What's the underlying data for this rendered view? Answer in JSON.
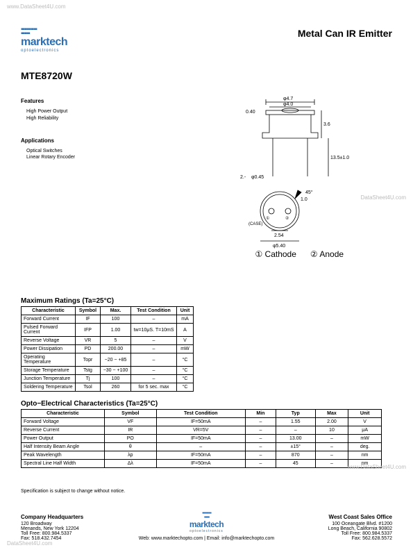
{
  "watermarks": {
    "tl": "www.DataSheet4U.com",
    "bl": "DataSheet4U.com",
    "r1": "DataSheet4U.com",
    "r2": "www.DataSheet4U.com"
  },
  "logo": {
    "name": "marktech",
    "sub": "optoelectronics"
  },
  "title": "Metal Can IR Emitter",
  "part_number": "MTE8720W",
  "features": {
    "heading": "Features",
    "items": [
      "High Power Output",
      "High Reliability"
    ]
  },
  "applications": {
    "heading": "Applications",
    "items": [
      "Optical Switches",
      "Linear Rotary Encoder"
    ]
  },
  "diagram": {
    "dims": {
      "top_outer": "φ4.7",
      "top_inner": "φ4.0",
      "lens_h": "0.40",
      "body_h": "3.6",
      "lead_len": "13.5±1.0",
      "lead_ext": "2.-",
      "lead_dia": "φ0.45",
      "base_dia": "φ5.40",
      "pitch": "2.54",
      "tab_angle": "45°",
      "tab_len": "1.0"
    },
    "pin1_label": "① Cathode",
    "pin2_label": "② Anode",
    "case_label": "(CASE)"
  },
  "max_ratings": {
    "title": "Maximum Ratings (Ta=25°C)",
    "headers": [
      "Characteristic",
      "Symbol",
      "Max.",
      "Test Condition",
      "Unit"
    ],
    "rows": [
      [
        "Forward Current",
        "IF",
        "100",
        "–",
        "mA"
      ],
      [
        "Pulsed Forward Current",
        "IFP",
        "1.00",
        "tw=10μS. T=10mS",
        "A"
      ],
      [
        "Reverse Voltage",
        "VR",
        "5",
        "–",
        "V"
      ],
      [
        "Power Dissipation",
        "PD",
        "200.00",
        "–",
        "mW"
      ],
      [
        "Operating Temperature",
        "Topr",
        "−20 ~ +85",
        "–",
        "°C"
      ],
      [
        "Storage Temperature",
        "Tstg",
        "−30 ~ +100",
        "–",
        "°C"
      ],
      [
        "Junction Temperature",
        "Tj",
        "100",
        "–",
        "°C"
      ],
      [
        "Soldering Temperature",
        "Tsol",
        "260",
        "for 5 sec. max",
        "°C"
      ]
    ]
  },
  "opto": {
    "title": "Opto−Electrical Characteristics (Ta=25°C)",
    "headers": [
      "Characteristic",
      "Symbol",
      "Test Condition",
      "Min",
      "Typ",
      "Max",
      "Unit"
    ],
    "rows": [
      [
        "Forward Voltage",
        "VF",
        "IF=50mA",
        "–",
        "1.55",
        "2.00",
        "V"
      ],
      [
        "Reverse Current",
        "IR",
        "VR=5V",
        "–",
        "–",
        "10",
        "μA"
      ],
      [
        "Power Output",
        "PO",
        "IF=50mA",
        "–",
        "13.00",
        "–",
        "mW"
      ],
      [
        "Half Intensity Beam Angle",
        "θ",
        "–",
        "–",
        "±15°",
        "–",
        "deg."
      ],
      [
        "Peak Wavelength",
        "λp",
        "IF=50mA",
        "–",
        "870",
        "–",
        "nm"
      ],
      [
        "Spectral Line Half Width",
        "Δλ",
        "IF=50mA",
        "–",
        "45",
        "–",
        "nm"
      ]
    ]
  },
  "spec_note": "Specification is subject to change without notice.",
  "footer": {
    "hq": {
      "h": "Company Headquarters",
      "lines": [
        "120 Broadway",
        "Menands, New York 12204",
        "Toll Free: 800.984.5337",
        "Fax: 518.432.7454"
      ]
    },
    "mid": "Web: www.marktechopto.com | Email: info@marktechopto.com",
    "west": {
      "h": "West Coast Sales Office",
      "lines": [
        "100 Oceangate Blvd. #1200",
        "Long Beach, California 90802",
        "Toll Free: 800.984.5337",
        "Fax: 562.628.5572"
      ]
    }
  }
}
